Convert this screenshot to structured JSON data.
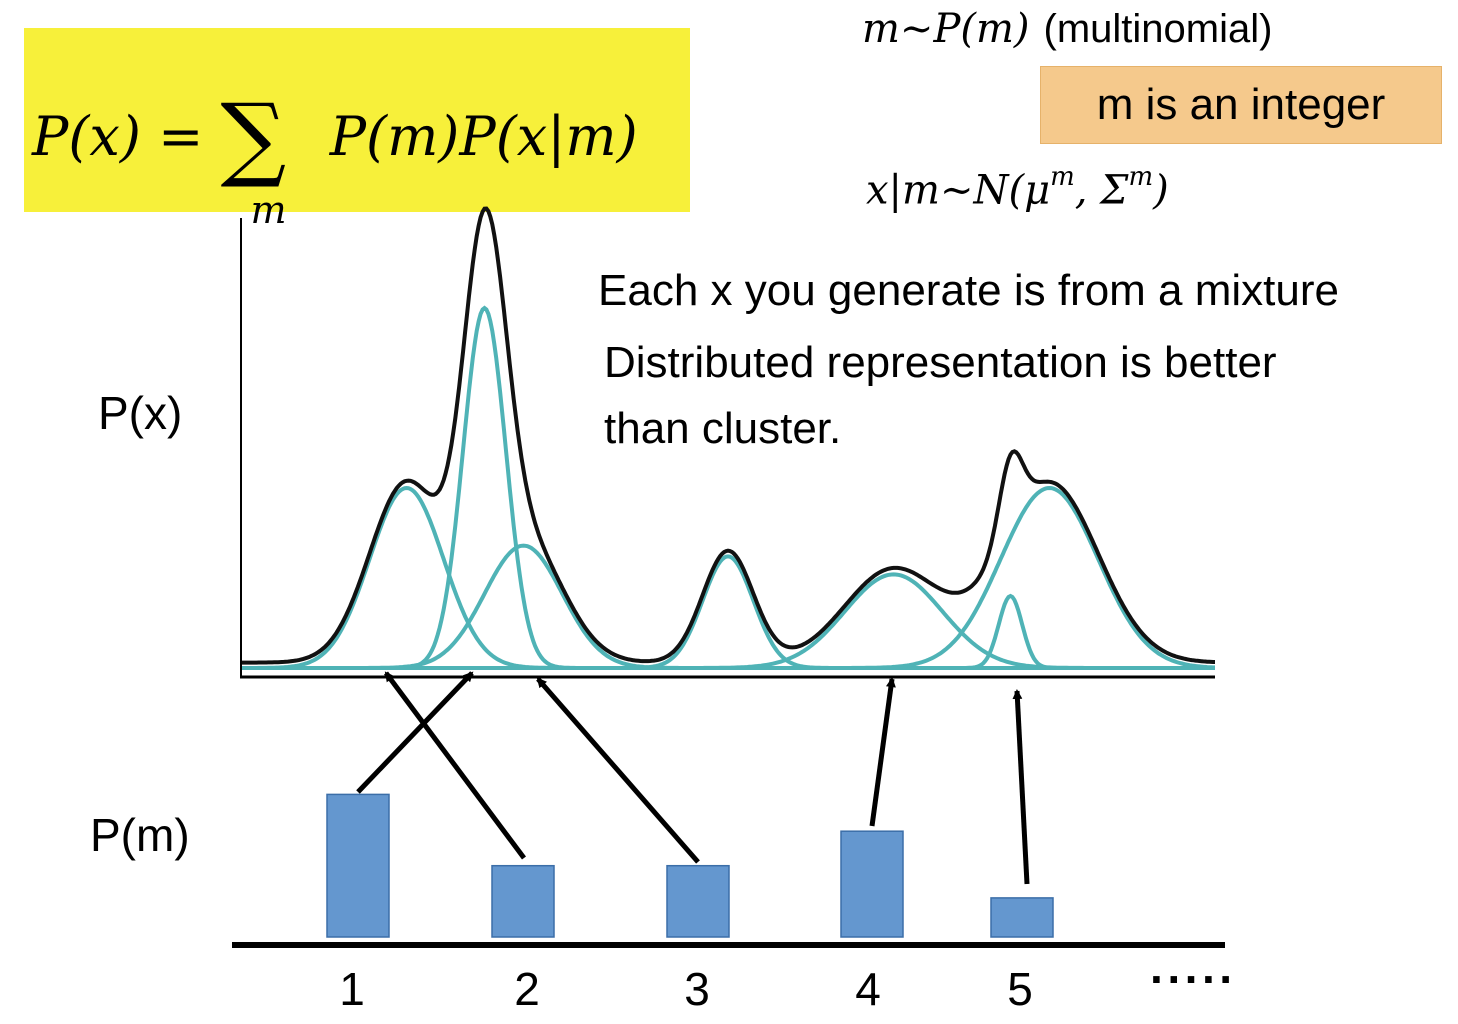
{
  "formula": {
    "lhs": "P(x) =",
    "sigma": "∑",
    "sub": "m",
    "rhs": "P(m)P(x|m)"
  },
  "line1": {
    "math": "m∼P(m)",
    "text": "(multinomial)"
  },
  "badge": "m is an integer",
  "line3": {
    "pre": "x|m∼N(μ",
    "sup1": "m",
    "mid": ", Σ",
    "sup2": "m",
    "post": ")"
  },
  "notes": [
    "Each x you generate is from a mixture",
    "Distributed representation is better",
    "than cluster."
  ],
  "axis_labels": {
    "px": "P(x)",
    "pm": "P(m)"
  },
  "ticks": [
    "1",
    "2",
    "3",
    "4",
    "5"
  ],
  "ellipsis": "·····",
  "components": [
    {
      "mean": 0.17,
      "sd": 0.038,
      "weight": 0.5
    },
    {
      "mean": 0.25,
      "sd": 0.022,
      "weight": 1.0
    },
    {
      "mean": 0.29,
      "sd": 0.04,
      "weight": 0.34
    },
    {
      "mean": 0.5,
      "sd": 0.026,
      "weight": 0.31
    },
    {
      "mean": 0.67,
      "sd": 0.05,
      "weight": 0.26
    },
    {
      "mean": 0.79,
      "sd": 0.012,
      "weight": 0.2
    },
    {
      "mean": 0.83,
      "sd": 0.05,
      "weight": 0.5
    }
  ],
  "pm_values": [
    0.62,
    0.31,
    0.31,
    0.46,
    0.17
  ],
  "colors": {
    "component": "#4fb3b6",
    "mixture": "#111111",
    "bar": "#6497cf",
    "bar_edge": "#3b6ea8",
    "highlight": "#f7f03a",
    "badge": "#f5c98c"
  }
}
